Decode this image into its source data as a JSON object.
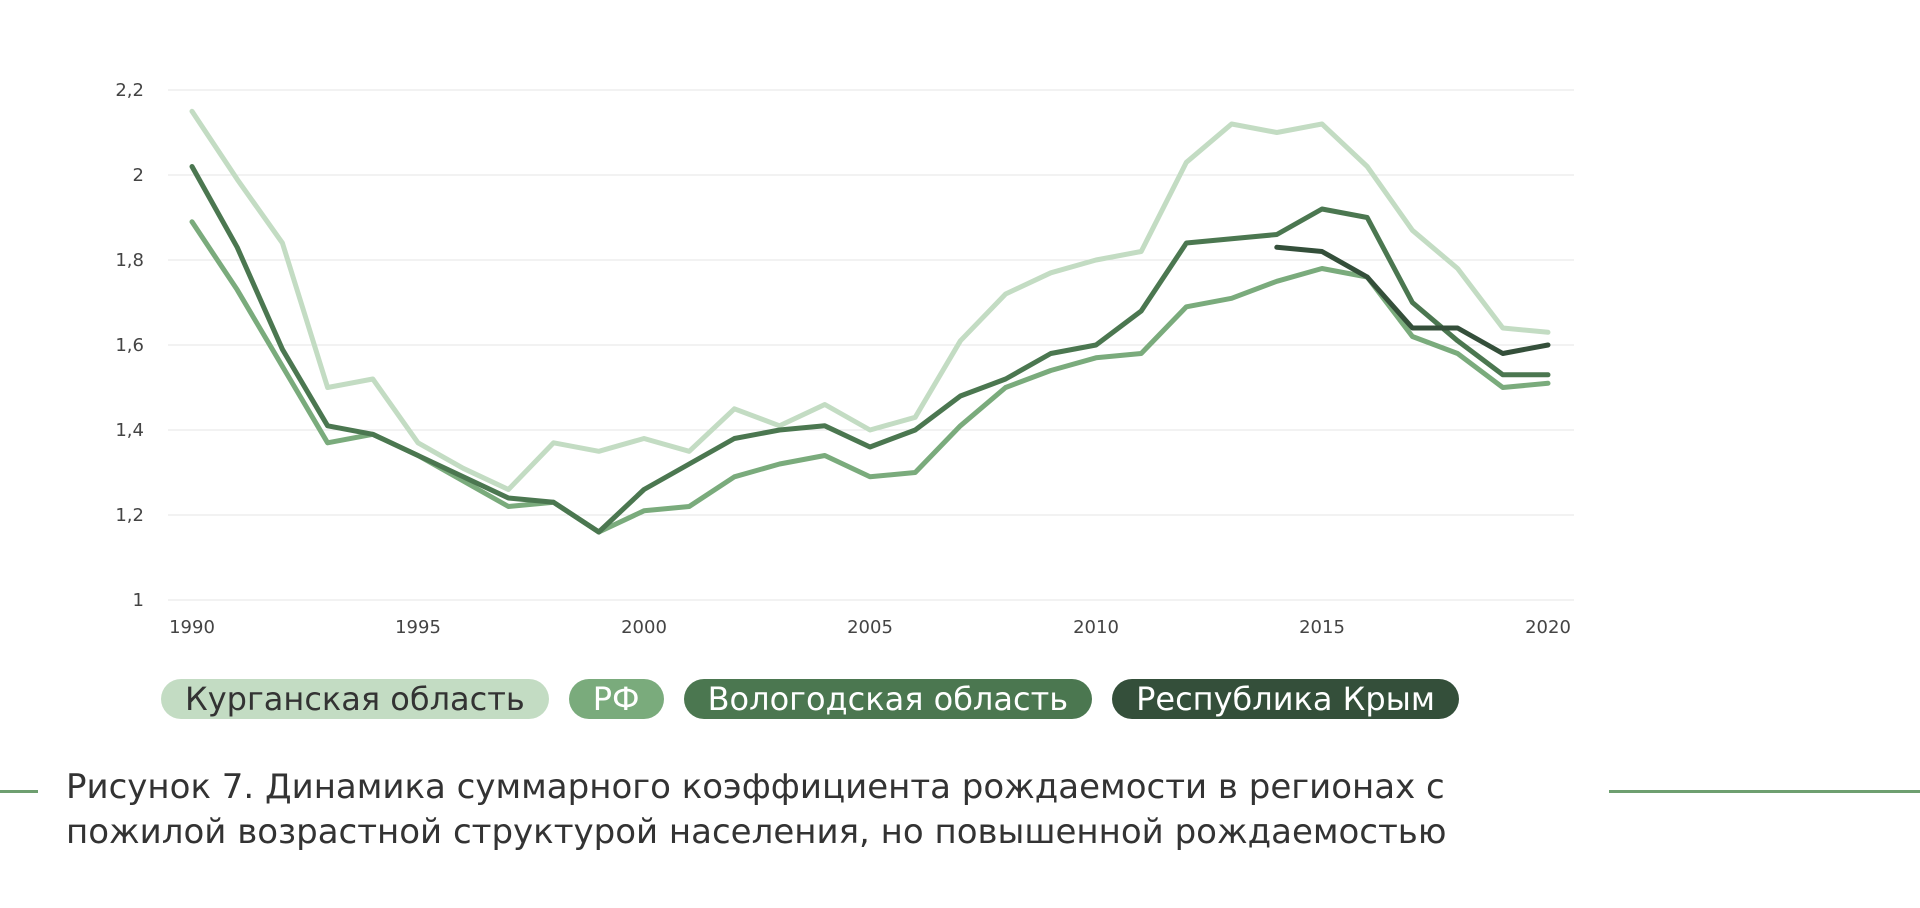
{
  "chart_data": {
    "type": "line",
    "x": [
      1990,
      1991,
      1992,
      1993,
      1994,
      1995,
      1996,
      1997,
      1998,
      1999,
      2000,
      2001,
      2002,
      2003,
      2004,
      2005,
      2006,
      2007,
      2008,
      2009,
      2010,
      2011,
      2012,
      2013,
      2014,
      2015,
      2016,
      2017,
      2018,
      2019,
      2020
    ],
    "xticks": [
      1990,
      1995,
      2000,
      2005,
      2010,
      2015,
      2020
    ],
    "xtick_labels": [
      "1990",
      "1995",
      "2000",
      "2005",
      "2010",
      "2015",
      "2020"
    ],
    "yticks": [
      1,
      1.2,
      1.4,
      1.6,
      1.8,
      2,
      2.2
    ],
    "ytick_labels": [
      "1",
      "1,2",
      "1,4",
      "1,6",
      "1,8",
      "2",
      "2,2"
    ],
    "ylim": [
      1,
      2.2
    ],
    "xlim": [
      1990,
      2020
    ],
    "grid": true,
    "legend_placement": "bottom",
    "series": [
      {
        "name": "Курганская область",
        "color": "#c3dcc3",
        "values": [
          2.15,
          1.99,
          1.84,
          1.5,
          1.52,
          1.37,
          1.31,
          1.26,
          1.37,
          1.35,
          1.38,
          1.35,
          1.45,
          1.41,
          1.46,
          1.4,
          1.43,
          1.61,
          1.72,
          1.77,
          1.8,
          1.82,
          2.03,
          2.12,
          2.1,
          2.12,
          2.02,
          1.87,
          1.78,
          1.64,
          1.63
        ]
      },
      {
        "name": "РФ",
        "color": "#7aab7c",
        "values": [
          1.89,
          1.73,
          1.55,
          1.37,
          1.39,
          1.34,
          1.28,
          1.22,
          1.23,
          1.16,
          1.21,
          1.22,
          1.29,
          1.32,
          1.34,
          1.29,
          1.3,
          1.41,
          1.5,
          1.54,
          1.57,
          1.58,
          1.69,
          1.71,
          1.75,
          1.78,
          1.76,
          1.62,
          1.58,
          1.5,
          1.51
        ]
      },
      {
        "name": "Вологодская область",
        "color": "#4b7750",
        "values": [
          2.02,
          1.83,
          1.59,
          1.41,
          1.39,
          1.34,
          1.29,
          1.24,
          1.23,
          1.16,
          1.26,
          1.32,
          1.38,
          1.4,
          1.41,
          1.36,
          1.4,
          1.48,
          1.52,
          1.58,
          1.6,
          1.68,
          1.84,
          1.85,
          1.86,
          1.92,
          1.9,
          1.7,
          1.61,
          1.53,
          1.53
        ]
      },
      {
        "name": "Республика Крым",
        "color": "#344f3a",
        "values": [
          null,
          null,
          null,
          null,
          null,
          null,
          null,
          null,
          null,
          null,
          null,
          null,
          null,
          null,
          null,
          null,
          null,
          null,
          null,
          null,
          null,
          null,
          null,
          null,
          1.83,
          1.82,
          1.76,
          1.64,
          1.64,
          1.58,
          1.6
        ]
      }
    ]
  },
  "legend": {
    "items": [
      {
        "label": "Курганская область",
        "bg": "#c3dcc3",
        "fg": "#333333"
      },
      {
        "label": "РФ",
        "bg": "#7aab7c",
        "fg": "#ffffff"
      },
      {
        "label": "Вологодская область",
        "bg": "#4b7750",
        "fg": "#ffffff"
      },
      {
        "label": "Республика Крым",
        "bg": "#344f3a",
        "fg": "#ffffff"
      }
    ]
  },
  "caption": {
    "text": "Рисунок 7. Динамика суммарного коэффициента рождаемости в регионах с пожилой возрастной структурой населения, но повышенной рождаемостью",
    "line_color": "#6e9f70"
  }
}
